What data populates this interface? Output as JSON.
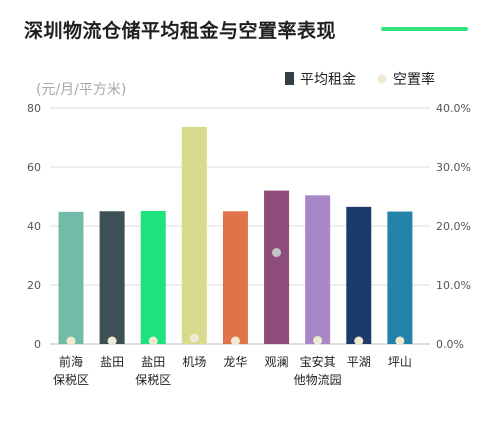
{
  "title": "深圳物流仓储平均租金与空置率表现",
  "colors": {
    "accent": "#2ee27e",
    "dot": "#f0ead0",
    "dot_grey": "#c4c4c4",
    "legend_rent": "#333f44",
    "legend_vacancy": "#f0ead0"
  },
  "chart_data": {
    "type": "bar",
    "unit_label": "(元/月/平方米)",
    "categories": [
      [
        "前海",
        "保税区"
      ],
      [
        "盐田"
      ],
      [
        "盐田",
        "保税区"
      ],
      [
        "机场"
      ],
      [
        "龙华"
      ],
      [
        "观澜"
      ],
      [
        "宝安其",
        "他物流园"
      ],
      [
        "平湖"
      ],
      [
        "坪山"
      ]
    ],
    "series": [
      {
        "name": "平均租金",
        "type": "bar",
        "axis": "left",
        "values": [
          44.8,
          45.0,
          45.1,
          73.6,
          45.0,
          52.0,
          50.4,
          46.5,
          44.9
        ],
        "colors": [
          "#72bba9",
          "#3e5055",
          "#1ee27e",
          "#d8db8e",
          "#df744b",
          "#8d4c79",
          "#a887c6",
          "#1d3a6c",
          "#2381aa"
        ]
      },
      {
        "name": "空置率",
        "type": "scatter",
        "axis": "right",
        "values": [
          0.3,
          0.0,
          0.0,
          1.0,
          0.0,
          15.5,
          0.6,
          0.0,
          0.0
        ],
        "colors": [
          "#f0ead0",
          "#f0ead0",
          "#f0ead0",
          "#f0ead0",
          "#f0ead0",
          "#c4c4c4",
          "#f0ead0",
          "#f0ead0",
          "#f0ead0"
        ]
      }
    ],
    "y_left": {
      "min": 0,
      "max": 80,
      "ticks": [
        "0",
        "20",
        "40",
        "60",
        "80"
      ]
    },
    "y_right": {
      "min": 0,
      "max": 40,
      "ticks": [
        "0.0%",
        "10.0%",
        "20.0%",
        "30.0%",
        "40.0%"
      ]
    },
    "grid": true,
    "legend": {
      "position": "top-right",
      "items": [
        {
          "label": "平均租金",
          "marker": "square",
          "color": "#333f44"
        },
        {
          "label": "空置率",
          "marker": "circle",
          "color": "#f0ead0"
        }
      ]
    }
  }
}
